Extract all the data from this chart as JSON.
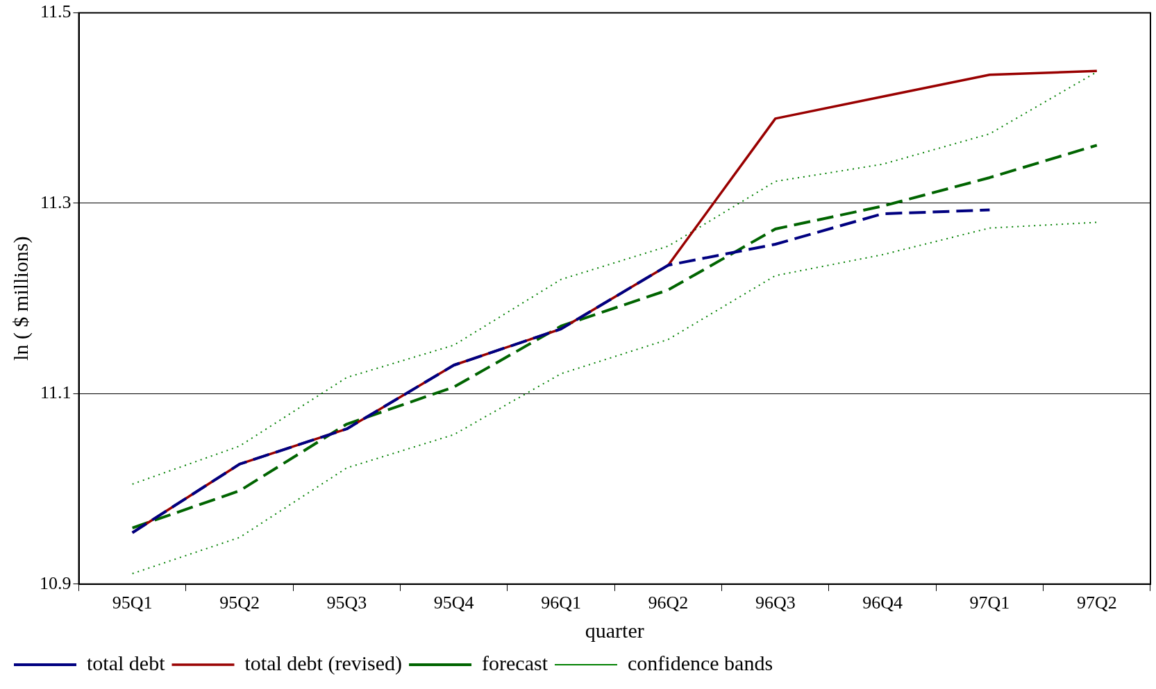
{
  "chart_data": {
    "type": "line",
    "xlabel": "quarter",
    "ylabel": "ln ( $ millions)",
    "categories": [
      "95Q1",
      "95Q2",
      "95Q3",
      "95Q4",
      "96Q1",
      "96Q2",
      "96Q3",
      "96Q4",
      "97Q1",
      "97Q2"
    ],
    "ylim": [
      10.9,
      11.5
    ],
    "yticks": [
      10.9,
      11.1,
      11.3,
      11.5
    ],
    "grid": "y",
    "legend": "bottom",
    "marker": "none",
    "series": [
      {
        "name": "total debt",
        "color": "#000080",
        "line_style": "dashed",
        "values": [
          10.954,
          11.026,
          11.063,
          11.13,
          11.168,
          11.235,
          11.257,
          11.289,
          11.293,
          null
        ]
      },
      {
        "name": "total debt (revised)",
        "color": "#990000",
        "line_style": "solid",
        "values": [
          10.954,
          11.026,
          11.063,
          11.13,
          11.168,
          11.235,
          11.389,
          11.412,
          11.435,
          11.439
        ]
      },
      {
        "name": "forecast",
        "color": "#006400",
        "line_style": "dashed",
        "values": [
          10.959,
          10.998,
          11.068,
          11.107,
          11.171,
          11.209,
          11.273,
          11.297,
          11.327,
          11.361
        ]
      },
      {
        "name": "confidence bands",
        "color": "#008000",
        "line_style": "dotted",
        "values": [
          11.005,
          11.045,
          11.117,
          11.151,
          11.22,
          11.255,
          11.323,
          11.341,
          11.373,
          11.438
        ]
      },
      {
        "color": "#008000",
        "line_style": "dotted",
        "values": [
          10.911,
          10.949,
          11.022,
          11.057,
          11.121,
          11.157,
          11.224,
          11.246,
          11.274,
          11.28
        ]
      }
    ]
  }
}
